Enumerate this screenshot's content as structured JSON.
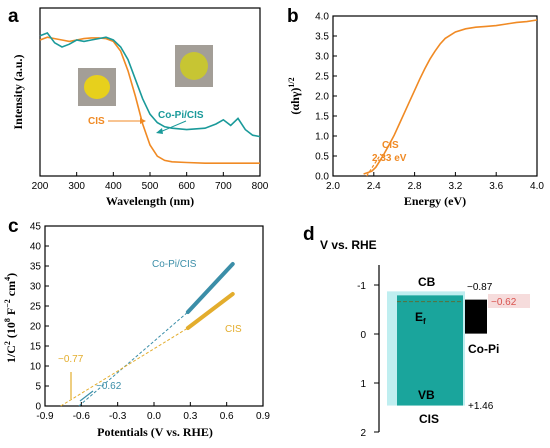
{
  "colors": {
    "orange": "#f08a24",
    "teal": "#1a9a9a",
    "cis_panel_c": "#e3ad2d",
    "copi_panel_c": "#3b8ea8",
    "band": "#1aa59c",
    "band_light": "#bfeef0",
    "black": "#000000",
    "red": "#d9534f"
  },
  "chart_data": [
    {
      "panel": "a",
      "type": "line",
      "xlabel": "Wavelength (nm)",
      "ylabel": "Intensity (a.u.)",
      "xlim": [
        200,
        800
      ],
      "xticks": [
        "200",
        "300",
        "400",
        "500",
        "600",
        "700",
        "800"
      ],
      "series": [
        {
          "name": "CIS",
          "color": "orange",
          "x": [
            200,
            220,
            240,
            260,
            280,
            300,
            320,
            340,
            360,
            380,
            400,
            420,
            440,
            460,
            480,
            500,
            520,
            540,
            560,
            600,
            650,
            700,
            750,
            800
          ],
          "y": [
            0.9,
            0.92,
            0.91,
            0.9,
            0.89,
            0.9,
            0.91,
            0.915,
            0.915,
            0.91,
            0.89,
            0.82,
            0.68,
            0.5,
            0.3,
            0.15,
            0.07,
            0.04,
            0.03,
            0.025,
            0.02,
            0.02,
            0.02,
            0.02
          ]
        },
        {
          "name": "Co-Pi/CIS",
          "color": "teal",
          "x": [
            200,
            220,
            240,
            260,
            280,
            300,
            320,
            340,
            360,
            380,
            400,
            420,
            440,
            460,
            480,
            500,
            520,
            540,
            560,
            600,
            650,
            680,
            700,
            720,
            740,
            760,
            780,
            800
          ],
          "y": [
            0.93,
            0.95,
            0.88,
            0.85,
            0.87,
            0.9,
            0.89,
            0.9,
            0.91,
            0.92,
            0.9,
            0.85,
            0.76,
            0.62,
            0.48,
            0.37,
            0.31,
            0.28,
            0.27,
            0.26,
            0.27,
            0.3,
            0.33,
            0.29,
            0.34,
            0.26,
            0.22,
            0.21
          ]
        }
      ],
      "labels": [
        "CIS",
        "Co-Pi/CIS"
      ]
    },
    {
      "panel": "b",
      "type": "line",
      "xlabel": "Energy (eV)",
      "ylabel": "(αhγ)^1/2",
      "ylabel_base": "(αhγ)",
      "ylabel_exp": "1/2",
      "xlim": [
        2.0,
        4.0
      ],
      "ylim": [
        0.0,
        4.0
      ],
      "xticks": [
        "2.0",
        "2.4",
        "2.8",
        "3.2",
        "3.6",
        "4.0"
      ],
      "yticks": [
        "0.0",
        "0.5",
        "1.0",
        "1.5",
        "2.0",
        "2.5",
        "3.0",
        "3.5",
        "4.0"
      ],
      "series": [
        {
          "name": "CIS",
          "color": "orange",
          "x": [
            2.3,
            2.38,
            2.42,
            2.46,
            2.5,
            2.55,
            2.6,
            2.65,
            2.7,
            2.75,
            2.8,
            2.85,
            2.9,
            2.95,
            3.0,
            3.05,
            3.1,
            3.2,
            3.3,
            3.4,
            3.5,
            3.6,
            3.7,
            3.8,
            3.9,
            4.0
          ],
          "y": [
            0.05,
            0.12,
            0.22,
            0.38,
            0.55,
            0.78,
            1.02,
            1.3,
            1.58,
            1.86,
            2.14,
            2.42,
            2.68,
            2.92,
            3.12,
            3.3,
            3.44,
            3.6,
            3.68,
            3.72,
            3.74,
            3.76,
            3.8,
            3.84,
            3.86,
            3.9
          ]
        }
      ],
      "annotation": {
        "label": "CIS",
        "value": "2.33 eV",
        "x": 2.33
      }
    },
    {
      "panel": "c",
      "type": "line",
      "xlabel": "Potentials (V vs. RHE)",
      "ylabel": "1/C^2 (10^8 F^-2 cm^4)",
      "ylabel_a": "1/C",
      "ylabel_a_exp": "2",
      "ylabel_b": " (10",
      "ylabel_b_exp": "8",
      "ylabel_c": " F",
      "ylabel_c_exp": "−2",
      "ylabel_d": " cm",
      "ylabel_d_exp": "4",
      "ylabel_e": ")",
      "xlim": [
        -0.9,
        0.9
      ],
      "ylim": [
        0,
        45
      ],
      "xticks": [
        "-0.9",
        "-0.6",
        "-0.3",
        "0.0",
        "0.3",
        "0.6",
        "0.9"
      ],
      "yticks": [
        "0",
        "5",
        "10",
        "15",
        "20",
        "25",
        "30",
        "35",
        "40",
        "45"
      ],
      "series": [
        {
          "name": "Co-Pi/CIS",
          "color": "copi_panel_c",
          "x": [
            0.28,
            0.65
          ],
          "y": [
            23.5,
            35.5
          ],
          "fit_x": [
            -0.62,
            0.28
          ],
          "fit_y": [
            0,
            23.5
          ]
        },
        {
          "name": "CIS",
          "color": "cis_panel_c",
          "x": [
            0.28,
            0.65
          ],
          "y": [
            19.5,
            28.0
          ],
          "fit_x": [
            -0.77,
            0.28
          ],
          "fit_y": [
            0,
            19.5
          ]
        }
      ],
      "intercepts": [
        {
          "label": "−0.77",
          "x": -0.77,
          "color": "cis_panel_c"
        },
        {
          "label": "−0.62",
          "x": -0.62,
          "color": "copi_panel_c"
        }
      ]
    },
    {
      "panel": "d",
      "type": "diagram",
      "title": "V vs. RHE",
      "ylim": [
        -1.25,
        2.0
      ],
      "yticks": [
        "-1",
        "0",
        "1",
        "2"
      ],
      "cis": {
        "label": "CIS",
        "cb": -0.87,
        "vb": 1.46,
        "cb_label": "CB",
        "vb_label": "VB",
        "cb_value": "−0.87",
        "vb_value": "+1.46",
        "ef_label": "E",
        "ef_sub": "f"
      },
      "copi": {
        "label": "Co-Pi",
        "level": -0.62,
        "value": "−0.62"
      }
    }
  ]
}
